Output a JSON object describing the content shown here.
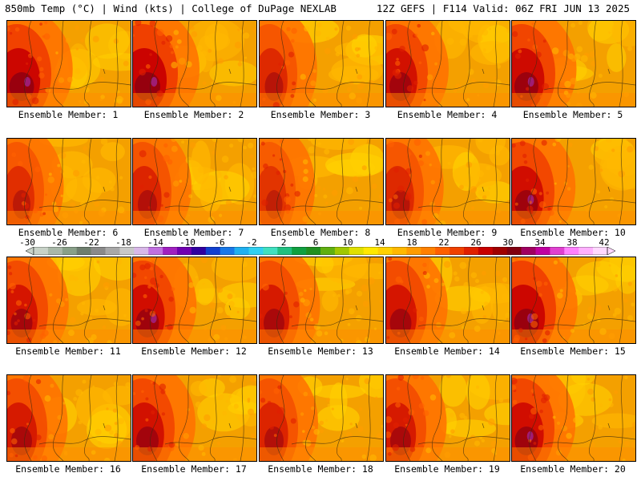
{
  "header": {
    "left": "850mb Temp (°C) | Wind (kts) | College of DuPage NEXLAB",
    "right": "12Z GEFS | F114 Valid: 06Z FRI JUN 13 2025"
  },
  "colorbar": {
    "labels": [
      "-30",
      "-26",
      "-22",
      "-18",
      "-14",
      "-10",
      "-6",
      "-2",
      "2",
      "6",
      "10",
      "14",
      "18",
      "22",
      "26",
      "30",
      "34",
      "38",
      "42"
    ],
    "colors": [
      "#c8d2c8",
      "#a8b8a8",
      "#88a088",
      "#6e7e6e",
      "#8a8a8a",
      "#a8a8a8",
      "#c8c8c8",
      "#d8b8e8",
      "#c070e0",
      "#a020c0",
      "#7000b0",
      "#3000a0",
      "#1040d0",
      "#1878e8",
      "#20b0f0",
      "#30d0f0",
      "#40e0c0",
      "#20c080",
      "#10a040",
      "#209020",
      "#60b010",
      "#a0c800",
      "#e0e000",
      "#ffe800",
      "#ffd000",
      "#ffb800",
      "#ff9c00",
      "#ff8000",
      "#ff6000",
      "#f04000",
      "#e02000",
      "#c80000",
      "#a00000",
      "#800010",
      "#a00060",
      "#c000a0",
      "#e040d0",
      "#ff80ff",
      "#ffb0ff",
      "#ffd8ff"
    ]
  },
  "panels": [
    {
      "label": "Ensemble Member: 1",
      "west": 0.95
    },
    {
      "label": "Ensemble Member: 2",
      "west": 1.0
    },
    {
      "label": "Ensemble Member: 3",
      "west": 0.55
    },
    {
      "label": "Ensemble Member: 4",
      "west": 0.8
    },
    {
      "label": "Ensemble Member: 5",
      "west": 0.9
    },
    {
      "label": "Ensemble Member: 6",
      "west": 0.5
    },
    {
      "label": "Ensemble Member: 7",
      "west": 0.6
    },
    {
      "label": "Ensemble Member: 8",
      "west": 0.45
    },
    {
      "label": "Ensemble Member: 9",
      "west": 0.55
    },
    {
      "label": "Ensemble Member: 10",
      "west": 0.85
    },
    {
      "label": "Ensemble Member: 11",
      "west": 0.75
    },
    {
      "label": "Ensemble Member: 12",
      "west": 0.85
    },
    {
      "label": "Ensemble Member: 13",
      "west": 0.7
    },
    {
      "label": "Ensemble Member: 14",
      "west": 0.75
    },
    {
      "label": "Ensemble Member: 15",
      "west": 0.95
    },
    {
      "label": "Ensemble Member: 16",
      "west": 0.7
    },
    {
      "label": "Ensemble Member: 17",
      "west": 0.8
    },
    {
      "label": "Ensemble Member: 18",
      "west": 0.6
    },
    {
      "label": "Ensemble Member: 19",
      "west": 0.7
    },
    {
      "label": "Ensemble Member: 20",
      "west": 0.85
    }
  ]
}
